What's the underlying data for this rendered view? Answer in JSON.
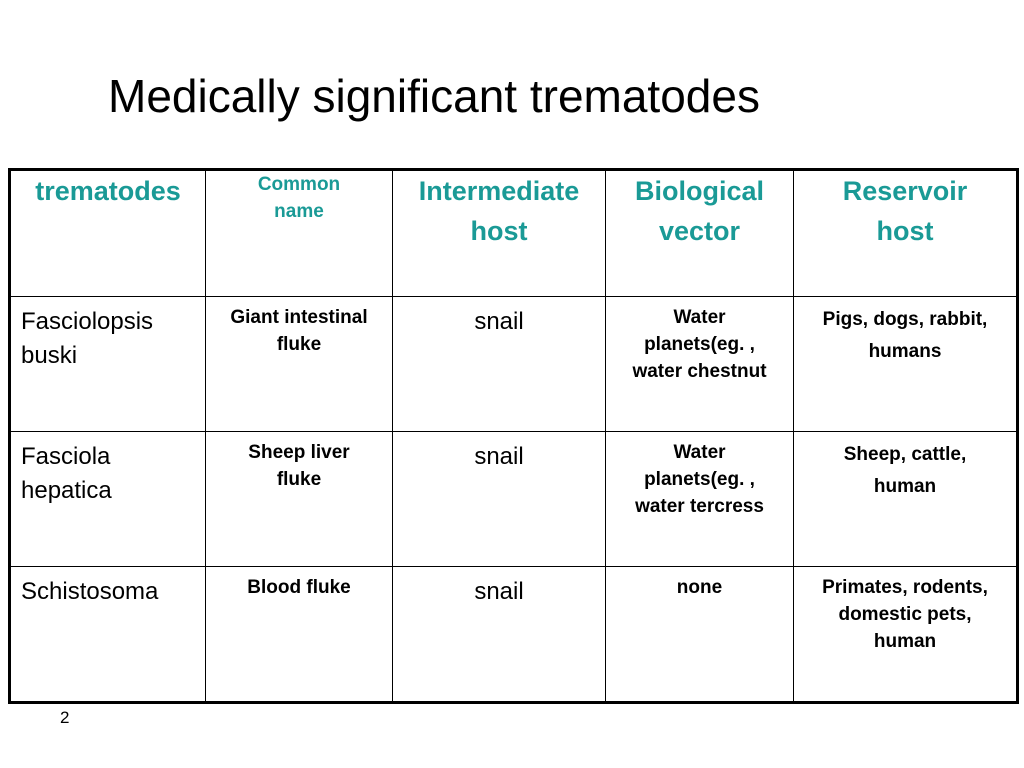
{
  "slide": {
    "title": "Medically significant trematodes",
    "page_number": "2"
  },
  "table": {
    "headers": [
      "trematodes",
      "Common\nname",
      "Intermediate\nhost",
      "Biological\nvector",
      "Reservoir\nhost"
    ],
    "rows": [
      {
        "trematode": "Fasciolopsis\nbuski",
        "common_name": "Giant intestinal\nfluke",
        "intermediate_host": "snail",
        "biological_vector": "Water\nplanets(eg. ,\nwater chestnut",
        "reservoir_host": "Pigs, dogs, rabbit,\nhumans"
      },
      {
        "trematode": "Fasciola\nhepatica",
        "common_name": "Sheep liver\nfluke",
        "intermediate_host": "snail",
        "biological_vector": "Water\nplanets(eg. ,\nwater tercress",
        "reservoir_host": "Sheep, cattle,\nhuman"
      },
      {
        "trematode": "Schistosoma",
        "common_name": "Blood fluke",
        "intermediate_host": "snail",
        "biological_vector": "none",
        "reservoir_host": "Primates, rodents,\ndomestic pets,\nhuman"
      }
    ]
  },
  "colors": {
    "header_text": "#1a9a96",
    "body_text": "#000000",
    "border": "#000000",
    "background": "#ffffff"
  }
}
